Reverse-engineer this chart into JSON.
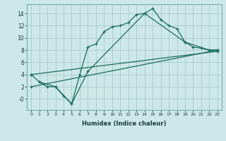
{
  "xlabel": "Humidex (Indice chaleur)",
  "bg_color": "#cde8e8",
  "grid_color": "#aecece",
  "line_color": "#1a6b5a",
  "xlim": [
    -0.5,
    23.5
  ],
  "ylim": [
    -1.8,
    15.5
  ],
  "xticks": [
    0,
    1,
    2,
    3,
    4,
    5,
    6,
    7,
    8,
    9,
    10,
    11,
    12,
    13,
    14,
    15,
    16,
    17,
    18,
    19,
    20,
    21,
    22,
    23
  ],
  "yticks": [
    0,
    2,
    4,
    6,
    8,
    10,
    12,
    14
  ],
  "ytick_labels": [
    "-0",
    "2",
    "4",
    "6",
    "8",
    "10",
    "12",
    "14"
  ],
  "line1_x": [
    0,
    1,
    2,
    3,
    4,
    5,
    6,
    7,
    8,
    9,
    10,
    11,
    12,
    13,
    14,
    15,
    16,
    17,
    18,
    19,
    20,
    21,
    22,
    23
  ],
  "line1_y": [
    4.0,
    2.8,
    2.0,
    2.0,
    0.5,
    -0.8,
    4.0,
    8.5,
    9.0,
    11.0,
    11.8,
    12.0,
    12.5,
    13.8,
    14.0,
    14.8,
    13.0,
    12.0,
    11.5,
    9.3,
    8.5,
    8.3,
    8.0,
    8.0
  ],
  "line2_x": [
    1,
    3,
    5,
    7,
    14,
    19,
    22,
    23
  ],
  "line2_y": [
    2.8,
    2.0,
    -0.8,
    4.5,
    14.0,
    9.3,
    8.0,
    8.0
  ],
  "line3_x": [
    0,
    23
  ],
  "line3_y": [
    2.0,
    8.0
  ],
  "line4_x": [
    0,
    23
  ],
  "line4_y": [
    4.0,
    7.8
  ]
}
